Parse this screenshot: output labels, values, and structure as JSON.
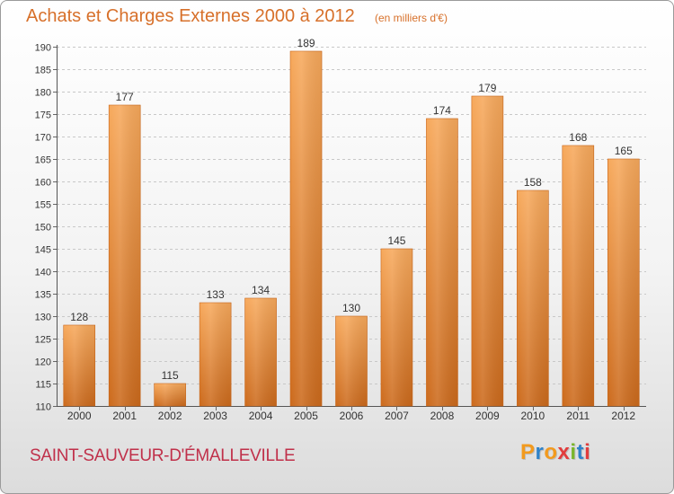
{
  "header": {
    "title": "Achats et Charges Externes 2000 à 2012",
    "subtitle": "(en milliers d'€)"
  },
  "footer": {
    "place": "SAINT-SAUVEUR-D'ÉMALLEVILLE",
    "logo": "Proxiti",
    "logo_colors": [
      "#f29a1e",
      "#2f82c8",
      "#f29a1e",
      "#e13c3c",
      "#7ab52b",
      "#2f82c8",
      "#e13c3c"
    ]
  },
  "colors": {
    "bar_light": "#f7a95c",
    "bar_dark": "#cc6a1c",
    "text": "#333333",
    "accent": "#d7702a"
  },
  "chart_data": {
    "type": "bar",
    "title": "Achats et Charges Externes 2000 à 2012",
    "subtitle": "(en milliers d'€)",
    "categories": [
      "2000",
      "2001",
      "2002",
      "2003",
      "2004",
      "2005",
      "2006",
      "2007",
      "2008",
      "2009",
      "2010",
      "2011",
      "2012"
    ],
    "values": [
      128,
      177,
      115,
      133,
      134,
      189,
      130,
      145,
      174,
      179,
      158,
      168,
      165
    ],
    "ylim": [
      110,
      190
    ],
    "yticks": [
      110,
      115,
      120,
      125,
      130,
      135,
      140,
      145,
      150,
      155,
      160,
      165,
      170,
      175,
      180,
      185,
      190
    ],
    "grid": true,
    "legend": "none"
  }
}
